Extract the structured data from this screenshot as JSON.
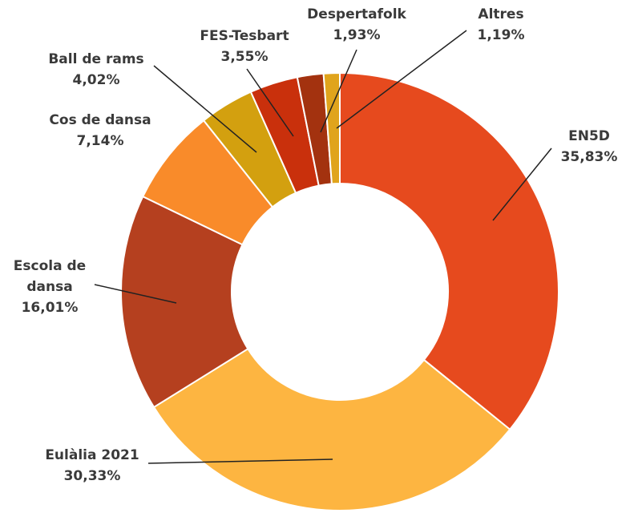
{
  "chart_data": {
    "type": "donut",
    "categories": [
      "EN5D",
      "Eulàlia 2021",
      "Escola de dansa",
      "Cos de dansa",
      "Ball de rams",
      "FES-Tesbart",
      "Despertafolk",
      "Altres"
    ],
    "values": [
      35.83,
      30.33,
      16.01,
      7.14,
      4.02,
      3.55,
      1.93,
      1.19
    ],
    "value_labels": [
      "35,83%",
      "30,33%",
      "16,01%",
      "7,14%",
      "4,02%",
      "3,55%",
      "1,93%",
      "1,19%"
    ],
    "colors": [
      "#e64a1e",
      "#fdb541",
      "#b5401f",
      "#f98b2a",
      "#d3a00f",
      "#c9300c",
      "#a3320f",
      "#e0a41c"
    ]
  }
}
